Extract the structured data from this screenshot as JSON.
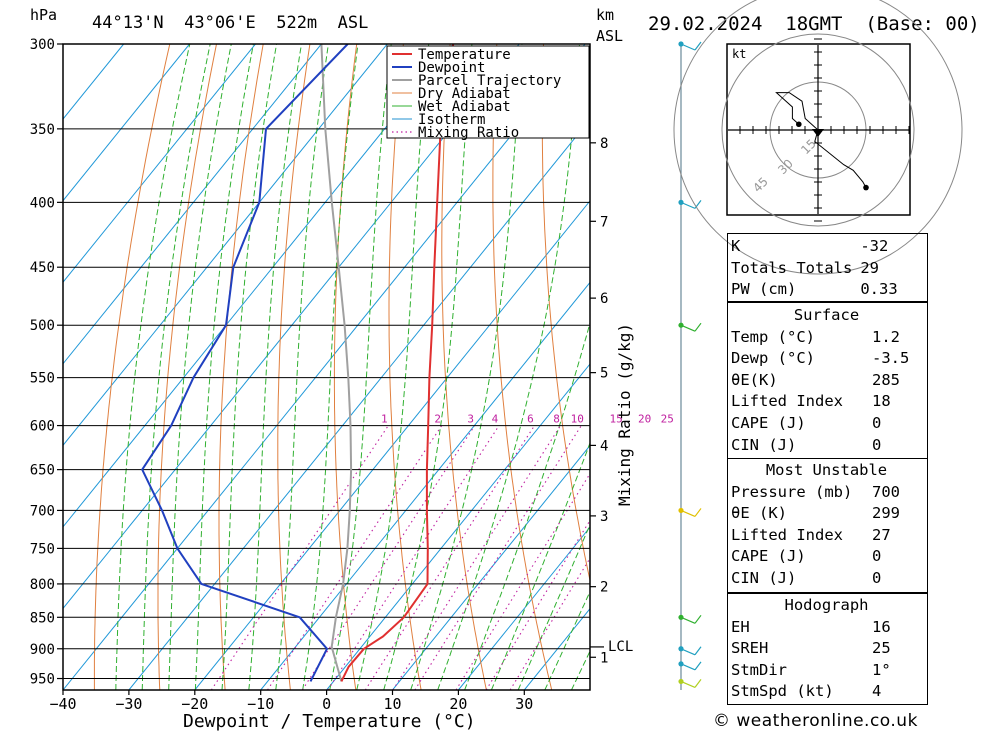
{
  "header": {
    "pressure_unit": "hPa",
    "location": "44°13'N  43°06'E  522m  ASL",
    "km_label": "km",
    "asl_label": "ASL",
    "datetime": "29.02.2024  18GMT  (Base: 00)"
  },
  "chart_data": {
    "type": "skew-t log-p",
    "xlabel": "Dewpoint / Temperature (°C)",
    "ylabel_right": "Mixing Ratio (g/kg)",
    "xlim": [
      -40,
      40
    ],
    "ylim_hpa": [
      300,
      970
    ],
    "x_ticks": [
      "-40",
      "-30",
      "-20",
      "-10",
      "0",
      "10",
      "20",
      "30"
    ],
    "pressure_levels": [
      "300",
      "350",
      "400",
      "450",
      "500",
      "550",
      "600",
      "650",
      "700",
      "750",
      "800",
      "850",
      "900",
      "950"
    ],
    "km_ticks": [
      {
        "km": "1",
        "p": 914
      },
      {
        "km": "2",
        "p": 804
      },
      {
        "km": "3",
        "p": 707
      },
      {
        "km": "4",
        "p": 622
      },
      {
        "km": "5",
        "p": 545
      },
      {
        "km": "6",
        "p": 476
      },
      {
        "km": "7",
        "p": 414
      },
      {
        "km": "8",
        "p": 359
      }
    ],
    "lcl": {
      "label": "LCL",
      "p": 897
    },
    "mixing_ratio_labels": [
      "1",
      "2",
      "3",
      "4",
      "6",
      "8",
      "10",
      "15",
      "20",
      "25"
    ],
    "legend": [
      "Temperature",
      "Dewpoint",
      "Parcel Trajectory",
      "Dry Adiabat",
      "Wet Adiabat",
      "Isotherm",
      "Mixing Ratio"
    ],
    "series": [
      {
        "name": "Temperature",
        "color": "#e03030",
        "points": [
          [
            955,
            1.2
          ],
          [
            930,
            0.5
          ],
          [
            900,
            0.6
          ],
          [
            880,
            2.0
          ],
          [
            850,
            2.8
          ],
          [
            800,
            2.3
          ],
          [
            750,
            -2.0
          ],
          [
            700,
            -6.8
          ],
          [
            650,
            -11.8
          ],
          [
            600,
            -17.0
          ],
          [
            550,
            -22.7
          ],
          [
            500,
            -28.7
          ],
          [
            450,
            -35.5
          ],
          [
            400,
            -43.0
          ],
          [
            350,
            -51.5
          ],
          [
            300,
            -60.0
          ]
        ]
      },
      {
        "name": "Dewpoint",
        "color": "#2040c0",
        "points": [
          [
            955,
            -3.5
          ],
          [
            900,
            -5.0
          ],
          [
            850,
            -13.0
          ],
          [
            800,
            -32.0
          ],
          [
            750,
            -40.0
          ],
          [
            700,
            -47.0
          ],
          [
            650,
            -55.0
          ],
          [
            600,
            -56.0
          ],
          [
            550,
            -58.5
          ],
          [
            500,
            -60.0
          ],
          [
            450,
            -66.0
          ],
          [
            400,
            -70.0
          ],
          [
            350,
            -78.0
          ],
          [
            300,
            -76.0
          ]
        ]
      },
      {
        "name": "Parcel Trajectory",
        "color": "#a0a0a0",
        "points": [
          [
            955,
            1.2
          ],
          [
            897,
            -4.5
          ],
          [
            850,
            -7.5
          ],
          [
            800,
            -10.5
          ],
          [
            750,
            -14.2
          ],
          [
            700,
            -18.5
          ],
          [
            650,
            -23.3
          ],
          [
            600,
            -28.8
          ],
          [
            550,
            -35.0
          ],
          [
            500,
            -42.0
          ],
          [
            450,
            -50.0
          ],
          [
            400,
            -59.0
          ],
          [
            350,
            -69.0
          ],
          [
            300,
            -80.0
          ]
        ]
      }
    ],
    "wind_barbs": [
      {
        "p": 300,
        "color": "#20a0c0"
      },
      {
        "p": 400,
        "color": "#20a0c0"
      },
      {
        "p": 500,
        "color": "#30b030"
      },
      {
        "p": 700,
        "color": "#e0c000"
      },
      {
        "p": 850,
        "color": "#30b030"
      },
      {
        "p": 900,
        "color": "#20a0c0"
      },
      {
        "p": 925,
        "color": "#20a0c0"
      },
      {
        "p": 955,
        "color": "#b0d020"
      }
    ]
  },
  "hodograph": {
    "unit": "kt",
    "ring_labels": [
      "15",
      "30",
      "45"
    ],
    "trace_uv": [
      [
        0,
        0
      ],
      [
        -1,
        -4
      ],
      [
        8,
        -12
      ],
      [
        11,
        -14
      ],
      [
        14,
        -18
      ],
      [
        15,
        -20
      ]
    ],
    "upper_trace_uv": [
      [
        0,
        0
      ],
      [
        -4,
        4
      ],
      [
        -5,
        10
      ],
      [
        -9,
        13
      ],
      [
        -13,
        13
      ],
      [
        -8,
        8
      ],
      [
        -8,
        4
      ],
      [
        -6,
        2
      ]
    ]
  },
  "indices": {
    "k_label": "K",
    "k_value": "-32",
    "tt_label": "Totals Totals",
    "tt_value": "29",
    "pw_label": "PW (cm)",
    "pw_value": "0.33",
    "surface": {
      "title": "Surface",
      "temp_label": "Temp (°C)",
      "temp_value": "1.2",
      "dewp_label": "Dewp (°C)",
      "dewp_value": "-3.5",
      "theta_label": "θE(K)",
      "theta_value": "285",
      "li_label": "Lifted Index",
      "li_value": "18",
      "cape_label": "CAPE (J)",
      "cape_value": "0",
      "cin_label": "CIN (J)",
      "cin_value": "0"
    },
    "most_unstable": {
      "title": "Most Unstable",
      "pressure_label": "Pressure (mb)",
      "pressure_value": "700",
      "theta_label": "θE (K)",
      "theta_value": "299",
      "li_label": "Lifted Index",
      "li_value": "27",
      "cape_label": "CAPE (J)",
      "cape_value": "0",
      "cin_label": "CIN (J)",
      "cin_value": "0"
    },
    "hodograph": {
      "title": "Hodograph",
      "eh_label": "EH",
      "eh_value": "16",
      "sreh_label": "SREH",
      "sreh_value": "25",
      "stmdir_label": "StmDir",
      "stmdir_value": "1°",
      "stmspd_label": "StmSpd (kt)",
      "stmspd_value": "4"
    }
  },
  "footer": {
    "copyright": "© weatheronline.co.uk"
  }
}
